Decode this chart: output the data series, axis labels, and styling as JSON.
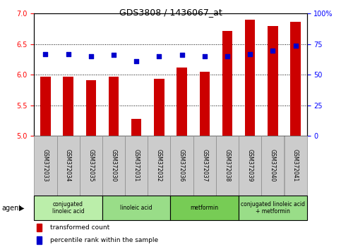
{
  "title": "GDS3808 / 1436067_at",
  "samples": [
    "GSM372033",
    "GSM372034",
    "GSM372035",
    "GSM372030",
    "GSM372031",
    "GSM372032",
    "GSM372036",
    "GSM372037",
    "GSM372038",
    "GSM372039",
    "GSM372040",
    "GSM372041"
  ],
  "transformed_count": [
    5.97,
    5.97,
    5.91,
    5.97,
    5.28,
    5.93,
    6.12,
    6.05,
    6.72,
    6.9,
    6.8,
    6.87
  ],
  "percentile_rank": [
    67,
    67,
    65,
    66,
    61,
    65,
    66,
    65,
    65,
    67,
    70,
    74
  ],
  "ylim_left": [
    5.0,
    7.0
  ],
  "ylim_right": [
    0,
    100
  ],
  "yticks_left": [
    5.0,
    5.5,
    6.0,
    6.5,
    7.0
  ],
  "yticks_right": [
    0,
    25,
    50,
    75,
    100
  ],
  "ytick_labels_right": [
    "0",
    "25",
    "50",
    "75",
    "100%"
  ],
  "bar_color": "#cc0000",
  "dot_color": "#0000cc",
  "agent_groups": [
    {
      "label": "conjugated\nlinoleic acid",
      "start": 0,
      "end": 3,
      "color": "#bbeeaa"
    },
    {
      "label": "linoleic acid",
      "start": 3,
      "end": 6,
      "color": "#99dd88"
    },
    {
      "label": "metformin",
      "start": 6,
      "end": 9,
      "color": "#77cc55"
    },
    {
      "label": "conjugated linoleic acid\n+ metformin",
      "start": 9,
      "end": 12,
      "color": "#99dd88"
    }
  ],
  "bar_width": 0.45,
  "dot_size": 25,
  "sample_cell_color": "#cccccc",
  "legend_red_label": "transformed count",
  "legend_blue_label": "percentile rank within the sample",
  "agent_label": "agent"
}
